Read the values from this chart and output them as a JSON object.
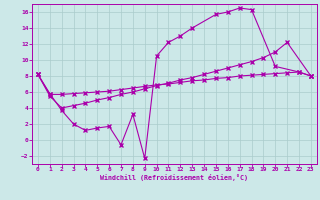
{
  "xlabel": "Windchill (Refroidissement éolien,°C)",
  "xlim": [
    -0.5,
    23.5
  ],
  "ylim": [
    -3.0,
    17.0
  ],
  "bg_color": "#cce8e8",
  "line_color": "#aa00aa",
  "grid_color": "#aacccc",
  "xticks": [
    0,
    1,
    2,
    3,
    4,
    5,
    6,
    7,
    8,
    9,
    10,
    11,
    12,
    13,
    14,
    15,
    16,
    17,
    18,
    19,
    20,
    21,
    22,
    23
  ],
  "yticks": [
    -2,
    0,
    2,
    4,
    6,
    8,
    10,
    12,
    14,
    16
  ],
  "series1_x": [
    0,
    1,
    2,
    3,
    4,
    5,
    6,
    7,
    8,
    9,
    10,
    11,
    12,
    13,
    15,
    16,
    17,
    18,
    20,
    22,
    23
  ],
  "series1_y": [
    8.2,
    5.8,
    3.7,
    2.0,
    1.2,
    1.5,
    1.7,
    -0.6,
    3.2,
    -2.3,
    10.5,
    12.2,
    13.0,
    14.0,
    15.7,
    16.0,
    16.5,
    16.3,
    9.2,
    8.5,
    8.0
  ],
  "series2_x": [
    0,
    1,
    2,
    3,
    4,
    5,
    6,
    7,
    8,
    9,
    10,
    11,
    12,
    13,
    14,
    15,
    16,
    17,
    18,
    19,
    20,
    21,
    22,
    23
  ],
  "series2_y": [
    8.2,
    5.7,
    5.7,
    5.8,
    5.9,
    6.0,
    6.1,
    6.3,
    6.5,
    6.7,
    6.9,
    7.0,
    7.2,
    7.4,
    7.5,
    7.7,
    7.8,
    8.0,
    8.1,
    8.2,
    8.3,
    8.4,
    8.5,
    8.0
  ],
  "series3_x": [
    0,
    1,
    2,
    3,
    4,
    5,
    6,
    7,
    8,
    9,
    10,
    11,
    12,
    13,
    14,
    15,
    16,
    17,
    18,
    19,
    20,
    21,
    23
  ],
  "series3_y": [
    8.2,
    5.5,
    4.0,
    4.3,
    4.6,
    5.0,
    5.3,
    5.7,
    6.0,
    6.4,
    6.8,
    7.1,
    7.5,
    7.8,
    8.2,
    8.6,
    9.0,
    9.4,
    9.8,
    10.3,
    11.0,
    12.2,
    8.0
  ]
}
